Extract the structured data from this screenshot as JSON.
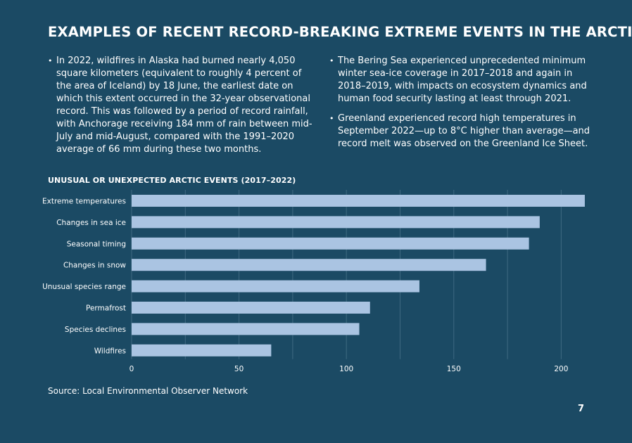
{
  "header": {
    "title": "EXAMPLES OF RECENT RECORD-BREAKING EXTREME EVENTS IN THE ARCTIC"
  },
  "bullets_left": [
    "In 2022, wildfires in Alaska had burned nearly 4,050 square kilometers (equivalent to roughly 4 percent of the area of Iceland) by 18 June, the earliest date on which this extent occurred in the 32-year observational record. This was followed by a period of record rainfall, with Anchorage receiving 184 mm of rain between mid-July and mid-August, compared with the 1991–2020 average of 66 mm during these two months."
  ],
  "bullets_right": [
    "The Bering Sea experienced unprecedented minimum winter sea-ice coverage in 2017–2018 and again in 2018–2019, with impacts on ecosystem dynamics and human food security lasting at least through 2021.",
    "Greenland experienced record high temperatures in September 2022—up to 8°C higher than average—and record melt was observed on the Greenland Ice Sheet."
  ],
  "chart_data": {
    "type": "bar",
    "orientation": "horizontal",
    "title": "UNUSUAL OR UNEXPECTED ARCTIC EVENTS (2017–2022)",
    "categories": [
      "Extreme temperatures",
      "Changes in sea ice",
      "Seasonal timing",
      "Changes in snow",
      "Unusual species range",
      "Permafrost",
      "Species declines",
      "Wildfires"
    ],
    "values": [
      211,
      190,
      185,
      165,
      134,
      111,
      106,
      65
    ],
    "xlim": [
      0,
      212
    ],
    "xticks": [
      0,
      50,
      100,
      150,
      200
    ],
    "grid": true,
    "bar_color": "#aac4e2",
    "grid_color": "#3f6a82"
  },
  "footer": {
    "source": "Source: Local Environmental Observer Network",
    "page_number": "7"
  }
}
